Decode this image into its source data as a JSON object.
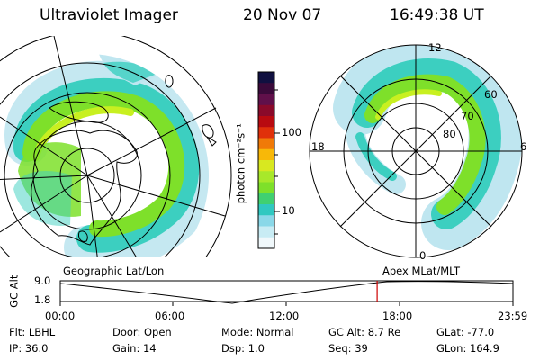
{
  "header": {
    "instrument": "Ultraviolet Imager",
    "date": "20 Nov 07",
    "time": "16:49:38 UT"
  },
  "colors": {
    "aurora_low": "#bfe6f0",
    "aurora_mid": "#3ccfc0",
    "aurora_high": "#7ee02a",
    "aurora_peak": "#c8f020",
    "marker": "#cc0000"
  },
  "left_panel": {
    "label": "Geographic Lat/Lon"
  },
  "right_panel": {
    "label": "Apex  MLat/MLT",
    "mlt_labels": [
      "12",
      "18",
      "6",
      "0"
    ],
    "lat_labels": [
      "60",
      "70",
      "80"
    ]
  },
  "colorbar": {
    "unit": "photon cm⁻²s⁻¹",
    "ticks": [
      "100",
      "10"
    ],
    "colors": [
      "#101040",
      "#3a0a3a",
      "#60104a",
      "#8a0a2a",
      "#b80a10",
      "#e0300a",
      "#f07a08",
      "#f8b808",
      "#d8e820",
      "#a8e82a",
      "#7ee02a",
      "#40d070",
      "#30c8c0",
      "#8ad8e8",
      "#c8ecf4",
      "#f0f8fb"
    ]
  },
  "altitude_plot": {
    "ylabel": "GC Alt",
    "y_ticks": [
      "9.0",
      "1.8"
    ],
    "x_ticks": [
      "00:00",
      "06:00",
      "12:00",
      "18:00",
      "23:59"
    ],
    "current_time_fraction": 0.7
  },
  "info": {
    "row1": [
      {
        "label": "Flt:",
        "value": "LBHL"
      },
      {
        "label": "Door:",
        "value": "Open"
      },
      {
        "label": "Mode:",
        "value": "Normal"
      },
      {
        "label": "GC Alt:",
        "value": "8.7 Re"
      },
      {
        "label": "GLat:",
        "value": "-77.0"
      }
    ],
    "row2": [
      {
        "label": "IP:",
        "value": "36.0"
      },
      {
        "label": "Gain:",
        "value": "14"
      },
      {
        "label": "Dsp:",
        "value": "1.0"
      },
      {
        "label": "Seq:",
        "value": "39"
      },
      {
        "label": "GLon:",
        "value": "164.9"
      }
    ]
  }
}
